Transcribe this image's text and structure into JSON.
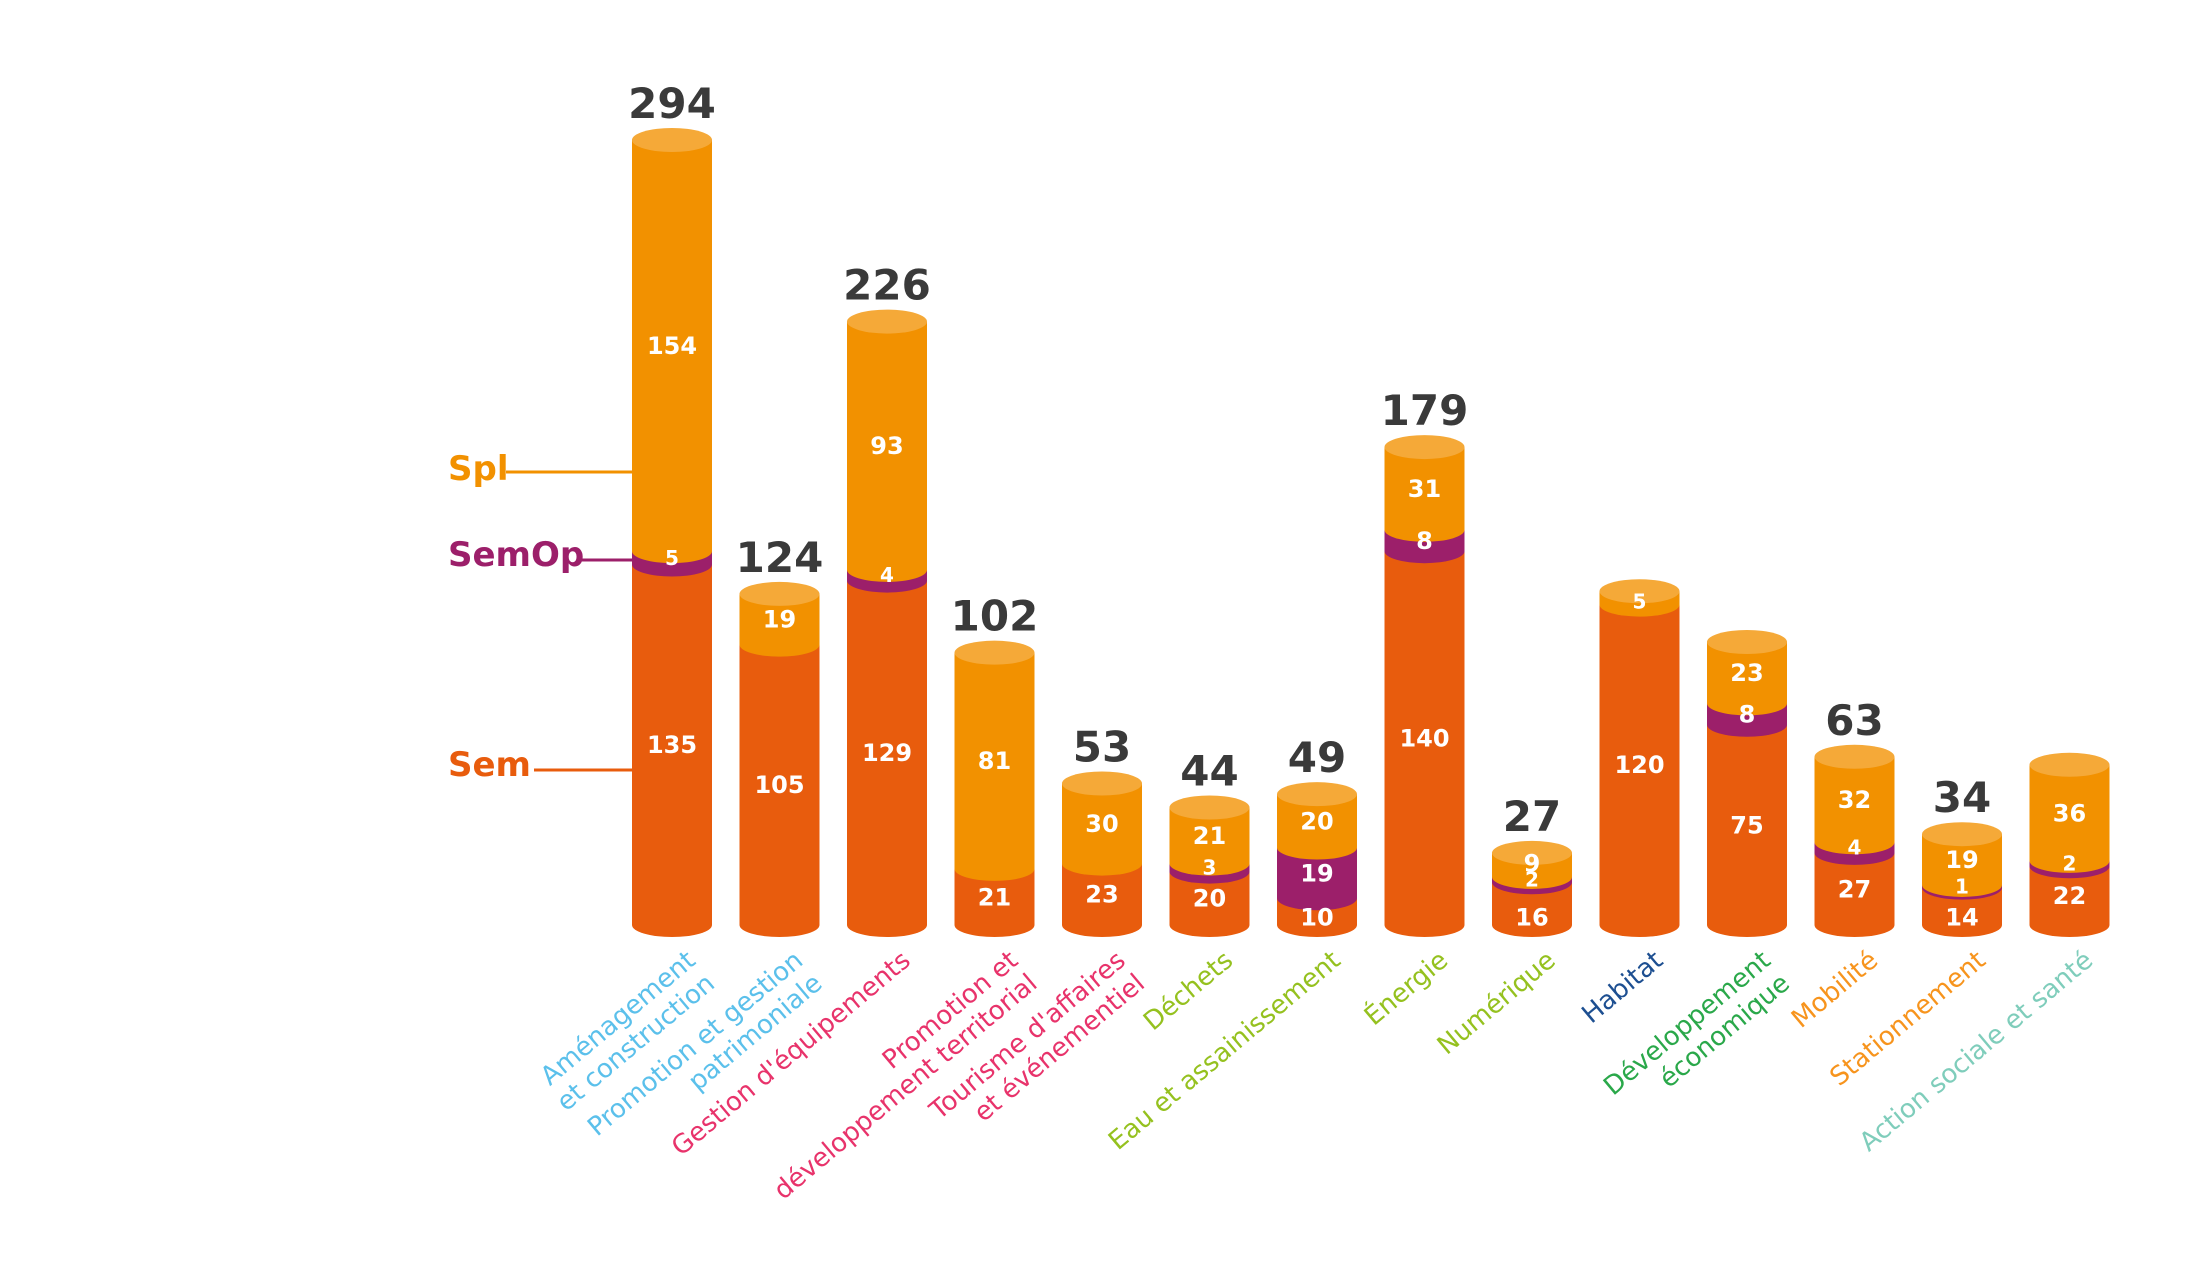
{
  "chart_data": {
    "type": "bar",
    "stacked": true,
    "title": "",
    "xlabel": "",
    "ylabel": "",
    "legend_position": "left",
    "series": [
      {
        "name": "Sem",
        "color": "#e85c0d",
        "values": [
          135,
          105,
          129,
          21,
          23,
          20,
          10,
          140,
          16,
          120,
          75,
          27,
          14,
          22
        ]
      },
      {
        "name": "SemOp",
        "color": "#9c1f6a",
        "values": [
          5,
          0,
          4,
          0,
          0,
          3,
          19,
          8,
          2,
          0,
          8,
          4,
          1,
          2
        ]
      },
      {
        "name": "Spl",
        "color": "#f29100",
        "values": [
          154,
          19,
          93,
          81,
          30,
          21,
          20,
          31,
          9,
          5,
          23,
          32,
          19,
          36
        ]
      }
    ],
    "totals": [
      "294",
      "124",
      "226",
      "102",
      "53",
      "44",
      "49",
      "179",
      "27",
      "",
      "",
      "63",
      "34",
      ""
    ],
    "categories": [
      {
        "lines": [
          "Aménagement",
          "et construction"
        ],
        "color": "#5bc0eb"
      },
      {
        "lines": [
          "Promotion et gestion",
          "patrimoniale"
        ],
        "color": "#5bc0eb"
      },
      {
        "lines": [
          "Gestion d'équipements"
        ],
        "color": "#e8336b"
      },
      {
        "lines": [
          "Promotion et",
          "développement territorial"
        ],
        "color": "#e8336b"
      },
      {
        "lines": [
          "Tourisme d'affaires",
          "et événementiel"
        ],
        "color": "#e8336b"
      },
      {
        "lines": [
          "Déchets"
        ],
        "color": "#95c11f"
      },
      {
        "lines": [
          "Eau et assainissement"
        ],
        "color": "#95c11f"
      },
      {
        "lines": [
          "Énergie"
        ],
        "color": "#95c11f"
      },
      {
        "lines": [
          "Numérique"
        ],
        "color": "#95c11f"
      },
      {
        "lines": [
          "Habitat"
        ],
        "color": "#1d4f91"
      },
      {
        "lines": [
          "Développement",
          "économique"
        ],
        "color": "#2aa84a"
      },
      {
        "lines": [
          "Mobilité"
        ],
        "color": "#f7941d"
      },
      {
        "lines": [
          "Stationnement"
        ],
        "color": "#f7941d"
      },
      {
        "lines": [
          "Action sociale et santé"
        ],
        "color": "#7fcdbb"
      }
    ],
    "legend": [
      {
        "label": "Spl",
        "color": "#f29100"
      },
      {
        "label": "SemOp",
        "color": "#9c1f6a"
      },
      {
        "label": "Sem",
        "color": "#e85c0d"
      }
    ]
  }
}
